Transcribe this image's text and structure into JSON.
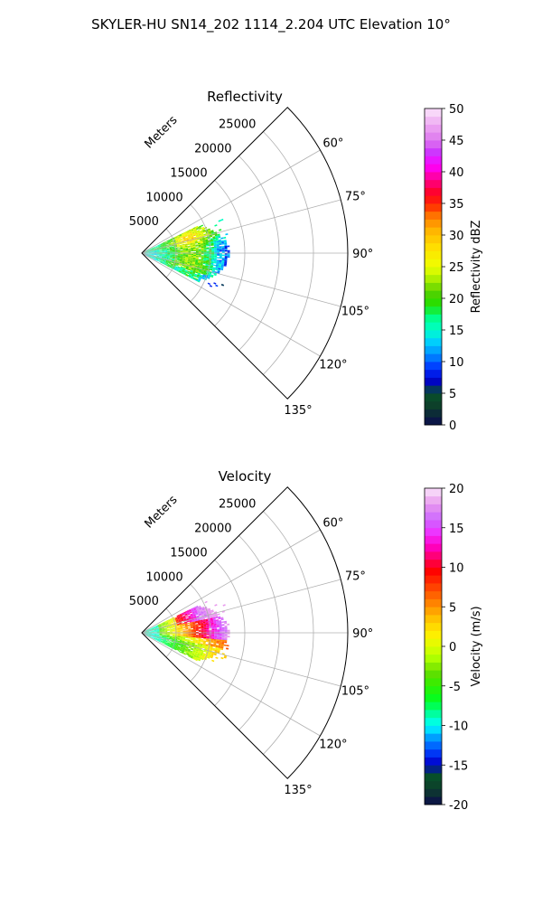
{
  "figure": {
    "suptitle": "SKYLER-HU  SN14_202  1114_2.204 UTC Elevation 10°"
  },
  "chart_data": [
    {
      "type": "heatmap",
      "title": "Reflectivity",
      "projection": "polar-sector",
      "theta_range_deg": [
        45,
        135
      ],
      "r_range": [
        0,
        30000
      ],
      "r_label": "Meters",
      "r_ticks": [
        "5000",
        "10000",
        "15000",
        "20000",
        "25000"
      ],
      "theta_ticks": [
        "60°",
        "75°",
        "90°",
        "105°",
        "120°",
        "135°"
      ],
      "grid": true,
      "colorbar": {
        "label": "Reflectivity dBZ",
        "range": [
          0,
          50
        ],
        "ticks": [
          "0",
          "5",
          "10",
          "15",
          "20",
          "25",
          "30",
          "35",
          "40",
          "45",
          "50"
        ],
        "colormap": "pyart_HomeyerRainbow"
      },
      "echo_extent_m": {
        "theta_deg": [
          64,
          116
        ],
        "r_max": 12500
      },
      "field_summary": [
        {
          "theta_deg": 70,
          "r_m": 7000,
          "value": 24
        },
        {
          "theta_deg": 90,
          "r_m": 5000,
          "value": 21
        },
        {
          "theta_deg": 95,
          "r_m": 7000,
          "value": 22
        },
        {
          "theta_deg": 105,
          "r_m": 6000,
          "value": 20
        },
        {
          "theta_deg": 112,
          "r_m": 8000,
          "value": 16
        },
        {
          "theta_deg": 88,
          "r_m": 11000,
          "value": 14
        }
      ]
    },
    {
      "type": "heatmap",
      "title": "Velocity",
      "projection": "polar-sector",
      "theta_range_deg": [
        45,
        135
      ],
      "r_range": [
        0,
        30000
      ],
      "r_label": "Meters",
      "r_ticks": [
        "5000",
        "10000",
        "15000",
        "20000",
        "25000"
      ],
      "theta_ticks": [
        "60°",
        "75°",
        "90°",
        "105°",
        "120°",
        "135°"
      ],
      "grid": true,
      "colorbar": {
        "label": "Velocity (m/s)",
        "range": [
          -20,
          20
        ],
        "ticks": [
          "-20",
          "-15",
          "-10",
          "-5",
          "0",
          "5",
          "10",
          "15",
          "20"
        ],
        "colormap": "pyart_BuDRd18"
      },
      "echo_extent_m": {
        "theta_deg": [
          64,
          116
        ],
        "r_max": 12500
      },
      "field_summary": [
        {
          "theta_deg": 70,
          "r_m": 8000,
          "value": 12
        },
        {
          "theta_deg": 80,
          "r_m": 6000,
          "value": 6
        },
        {
          "theta_deg": 90,
          "r_m": 1500,
          "value": -9
        },
        {
          "theta_deg": 95,
          "r_m": 7000,
          "value": 3
        },
        {
          "theta_deg": 108,
          "r_m": 6000,
          "value": -4
        },
        {
          "theta_deg": 112,
          "r_m": 9000,
          "value": 1
        }
      ]
    }
  ]
}
